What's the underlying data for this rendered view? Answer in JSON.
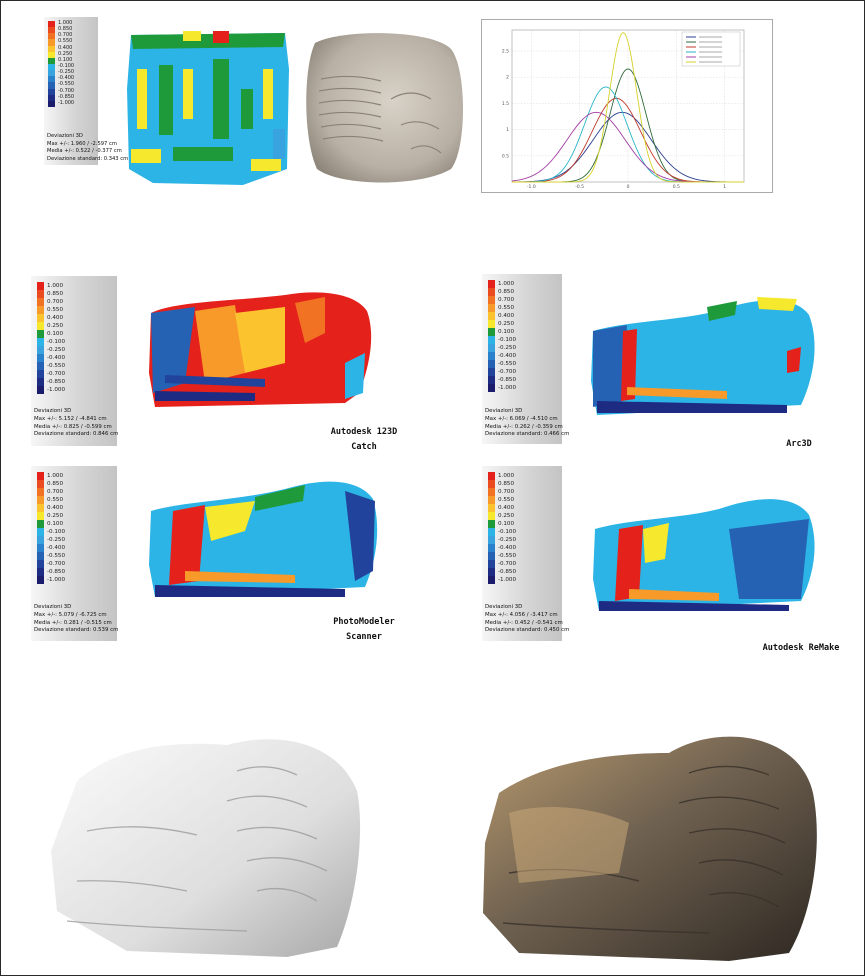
{
  "scale_colors": [
    "#e5211c",
    "#ec4a1f",
    "#f27224",
    "#f79a2a",
    "#fbc42e",
    "#f6e82d",
    "#1f9a3b",
    "#2bb4e5",
    "#38a3de",
    "#2b82cc",
    "#2562b4",
    "#22439b",
    "#1e2b82",
    "#1b1c6c"
  ],
  "top_legend": {
    "values": [
      "1.000",
      "0.850",
      "0.700",
      "0.550",
      "0.400",
      "0.250",
      "0.100",
      "-0.100",
      "-0.250",
      "-0.400",
      "-0.550",
      "-0.700",
      "-0.850",
      "-1.000"
    ],
    "stats": [
      "Deviazioni 3D",
      "Max +/-: 1.960 / -2.597 cm",
      "Media +/-: 0.522 / -0.377 cm",
      "Deviazione standard: 0.343 cm"
    ]
  },
  "legends": [
    {
      "values": [
        "1.000",
        "0.850",
        "0.700",
        "0.550",
        "0.400",
        "0.250",
        "0.100",
        "-0.100",
        "-0.250",
        "-0.400",
        "-0.550",
        "-0.700",
        "-0.850",
        "-1.000"
      ],
      "stats": [
        "Deviazioni 3D",
        "Max +/-: 5.152 / -4.841 cm",
        "Media +/-: 0.825 / -0.599 cm",
        "Deviazione standard: 0.846 cm"
      ]
    },
    {
      "values": [
        "1.000",
        "0.850",
        "0.700",
        "0.550",
        "0.400",
        "0.250",
        "0.100",
        "-0.100",
        "-0.250",
        "-0.400",
        "-0.550",
        "-0.700",
        "-0.850",
        "-1.000"
      ],
      "stats": [
        "Deviazioni 3D",
        "Max +/-: 6.069 / -4.510 cm",
        "Media +/-: 0.262 / -0.359 cm",
        "Deviazione standard: 0.466 cm"
      ]
    },
    {
      "values": [
        "1.000",
        "0.850",
        "0.700",
        "0.550",
        "0.400",
        "0.250",
        "0.100",
        "-0.100",
        "-0.250",
        "-0.400",
        "-0.550",
        "-0.700",
        "-0.850",
        "-1.000"
      ],
      "stats": [
        "Deviazioni 3D",
        "Max +/-: 5.079 / -6.725 cm",
        "Media +/-: 0.281 / -0.515 cm",
        "Deviazione standard: 0.539 cm"
      ]
    },
    {
      "values": [
        "1.000",
        "0.850",
        "0.700",
        "0.550",
        "0.400",
        "0.250",
        "0.100",
        "-0.100",
        "-0.250",
        "-0.400",
        "-0.550",
        "-0.700",
        "-0.850",
        "-1.000"
      ],
      "stats": [
        "Deviazioni 3D",
        "Max +/-: 4.056 / -3.417 cm",
        "Media +/-: 0.452 / -0.541 cm",
        "Deviazione standard: 0.450 cm"
      ]
    }
  ],
  "captions": {
    "autodesk_123d": [
      "Autodesk 123D",
      "Catch"
    ],
    "arc3d": [
      "Arc3D"
    ],
    "photomodeler": [
      "PhotoModeler",
      "Scanner"
    ],
    "remake": [
      "Autodesk ReMake"
    ]
  },
  "chart_data": {
    "type": "line",
    "xticks": [
      "-1.0",
      "-0.5",
      "0",
      "0.5",
      "1"
    ],
    "yticks": [
      "0.5",
      "1",
      "1.5",
      "2",
      "2.5"
    ],
    "xlim": [
      -1.2,
      1.2
    ],
    "ylim": [
      0,
      2.9
    ],
    "series": [
      {
        "color": "#2b3f8f",
        "mean": -0.06,
        "sd": 0.3
      },
      {
        "color": "#2f6b3a",
        "mean": 0.0,
        "sd": 0.185
      },
      {
        "color": "#c0392b",
        "mean": -0.12,
        "sd": 0.25
      },
      {
        "color": "#2ab5c8",
        "mean": -0.23,
        "sd": 0.22
      },
      {
        "color": "#a43fa5",
        "mean": -0.33,
        "sd": 0.3
      },
      {
        "color": "#d6d02a",
        "mean": -0.05,
        "sd": 0.14
      }
    ]
  }
}
